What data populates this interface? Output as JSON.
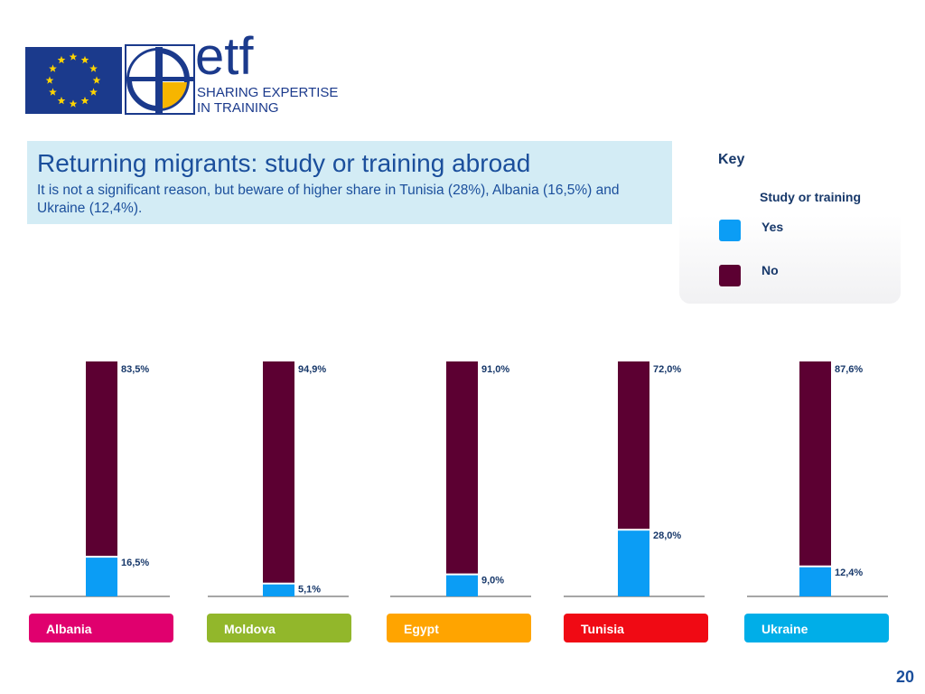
{
  "logo": {
    "wordmark": "etf",
    "tagline_line1": "SHARING EXPERTISE",
    "tagline_line2": "IN TRAINING",
    "icons": [
      "eu-flag-icon",
      "etf-cross-icon"
    ]
  },
  "header": {
    "title": "Returning migrants: study or training abroad",
    "subtitle": "It is not a significant reason, but beware of higher share in Tunisia (28%), Albania (16,5%) and Ukraine (12,4%)."
  },
  "key": {
    "label": "Key",
    "heading": "Study or training",
    "items": [
      {
        "label": "Yes",
        "color": "#0b9df5"
      },
      {
        "label": "No",
        "color": "#5c0032"
      }
    ]
  },
  "chart_data": {
    "type": "bar",
    "stacked": true,
    "categories": [
      "Albania",
      "Moldova",
      "Egypt",
      "Tunisia",
      "Ukraine"
    ],
    "category_colors": [
      "#e0006e",
      "#92b72b",
      "#ffa400",
      "#f00a14",
      "#00aee8"
    ],
    "series": [
      {
        "name": "Yes",
        "color": "#0b9df5",
        "values": [
          16.5,
          5.1,
          9.0,
          28.0,
          12.4
        ],
        "labels": [
          "16,5%",
          "5,1%",
          "9,0%",
          "28,0%",
          "12,4%"
        ]
      },
      {
        "name": "No",
        "color": "#5c0032",
        "values": [
          83.5,
          94.9,
          91.0,
          72.0,
          87.6
        ],
        "labels": [
          "83,5%",
          "94,9%",
          "91,0%",
          "72,0%",
          "87,6%"
        ]
      }
    ],
    "ylim": [
      0,
      100
    ],
    "grid": false
  },
  "page_number": "20"
}
